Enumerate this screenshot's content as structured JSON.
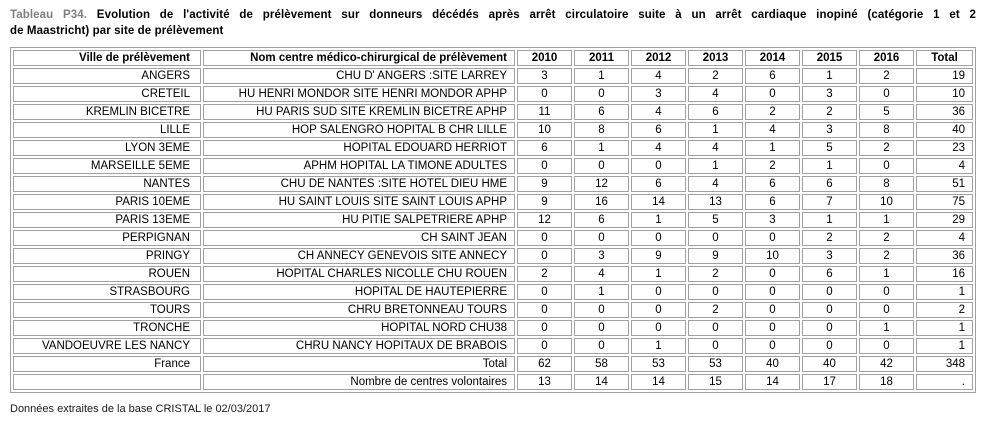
{
  "title": {
    "label": "Tableau P34.",
    "line1_rest": "Evolution de l'activité de prélèvement sur donneurs décédés après arrêt circulatoire suite à un arrêt cardiaque inopiné (catégorie 1 et 2",
    "line2": "de Maastricht) par site de prélèvement"
  },
  "table": {
    "columns": [
      "Ville de prélèvement",
      "Nom centre médico-chirurgical de prélèvement",
      "2010",
      "2011",
      "2012",
      "2013",
      "2014",
      "2015",
      "2016",
      "Total"
    ],
    "rows": [
      {
        "ville": "ANGERS",
        "centre": "CHU D' ANGERS :SITE LARREY",
        "values": [
          "3",
          "1",
          "4",
          "2",
          "6",
          "1",
          "2"
        ],
        "total": "19"
      },
      {
        "ville": "CRETEIL",
        "centre": "HU HENRI MONDOR SITE HENRI MONDOR APHP",
        "values": [
          "0",
          "0",
          "3",
          "4",
          "0",
          "3",
          "0"
        ],
        "total": "10"
      },
      {
        "ville": "KREMLIN BICETRE",
        "centre": "HU PARIS SUD SITE KREMLIN BICETRE APHP",
        "values": [
          "11",
          "6",
          "4",
          "6",
          "2",
          "2",
          "5"
        ],
        "total": "36"
      },
      {
        "ville": "LILLE",
        "centre": "HOP SALENGRO HOPITAL B CHR LILLE",
        "values": [
          "10",
          "8",
          "6",
          "1",
          "4",
          "3",
          "8"
        ],
        "total": "40"
      },
      {
        "ville": "LYON 3EME",
        "centre": "HOPITAL EDOUARD HERRIOT",
        "values": [
          "6",
          "1",
          "4",
          "4",
          "1",
          "5",
          "2"
        ],
        "total": "23"
      },
      {
        "ville": "MARSEILLE 5EME",
        "centre": "APHM HOPITAL LA TIMONE ADULTES",
        "values": [
          "0",
          "0",
          "0",
          "1",
          "2",
          "1",
          "0"
        ],
        "total": "4"
      },
      {
        "ville": "NANTES",
        "centre": "CHU DE NANTES :SITE HOTEL DIEU HME",
        "values": [
          "9",
          "12",
          "6",
          "4",
          "6",
          "6",
          "8"
        ],
        "total": "51"
      },
      {
        "ville": "PARIS 10EME",
        "centre": "HU SAINT LOUIS SITE SAINT LOUIS APHP",
        "values": [
          "9",
          "16",
          "14",
          "13",
          "6",
          "7",
          "10"
        ],
        "total": "75"
      },
      {
        "ville": "PARIS 13EME",
        "centre": "HU PITIE SALPETRIERE APHP",
        "values": [
          "12",
          "6",
          "1",
          "5",
          "3",
          "1",
          "1"
        ],
        "total": "29"
      },
      {
        "ville": "PERPIGNAN",
        "centre": "CH SAINT JEAN",
        "values": [
          "0",
          "0",
          "0",
          "0",
          "0",
          "2",
          "2"
        ],
        "total": "4"
      },
      {
        "ville": "PRINGY",
        "centre": "CH ANNECY GENEVOIS SITE ANNECY",
        "values": [
          "0",
          "3",
          "9",
          "9",
          "10",
          "3",
          "2"
        ],
        "total": "36"
      },
      {
        "ville": "ROUEN",
        "centre": "HOPITAL CHARLES NICOLLE CHU ROUEN",
        "values": [
          "2",
          "4",
          "1",
          "2",
          "0",
          "6",
          "1"
        ],
        "total": "16"
      },
      {
        "ville": "STRASBOURG",
        "centre": "HOPITAL DE HAUTEPIERRE",
        "values": [
          "0",
          "1",
          "0",
          "0",
          "0",
          "0",
          "0"
        ],
        "total": "1"
      },
      {
        "ville": "TOURS",
        "centre": "CHRU BRETONNEAU TOURS",
        "values": [
          "0",
          "0",
          "0",
          "2",
          "0",
          "0",
          "0"
        ],
        "total": "2"
      },
      {
        "ville": "TRONCHE",
        "centre": "HOPITAL NORD CHU38",
        "values": [
          "0",
          "0",
          "0",
          "0",
          "0",
          "0",
          "1"
        ],
        "total": "1"
      },
      {
        "ville": "VANDOEUVRE LES NANCY",
        "centre": "CHRU NANCY HOPITAUX DE BRABOIS",
        "values": [
          "0",
          "0",
          "1",
          "0",
          "0",
          "0",
          "0"
        ],
        "total": "1"
      }
    ],
    "total_row": {
      "ville": "France",
      "centre": "Total",
      "values": [
        "62",
        "58",
        "53",
        "53",
        "40",
        "40",
        "42"
      ],
      "total": "348"
    },
    "volunteer_row": {
      "ville": "",
      "centre": "Nombre de centres volontaires",
      "values": [
        "13",
        "14",
        "14",
        "15",
        "14",
        "17",
        "18"
      ],
      "total": "."
    }
  },
  "footer": {
    "text": "Données extraites de la base CRISTAL le 02/03/2017"
  },
  "colors": {
    "title_label": "#808080",
    "border": "#a1a1a1",
    "text": "#000000"
  }
}
